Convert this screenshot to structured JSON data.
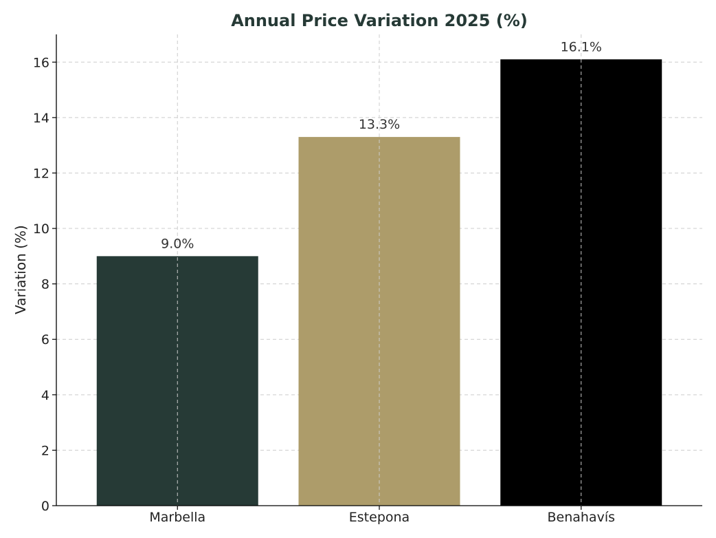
{
  "chart_data": {
    "type": "bar",
    "title": "Annual Price Variation 2025 (%)",
    "xlabel": "",
    "ylabel": "Variation (%)",
    "categories": [
      "Marbella",
      "Estepona",
      "Benahavís"
    ],
    "values": [
      9.0,
      13.3,
      16.1
    ],
    "data_labels": [
      "9.0%",
      "13.3%",
      "16.1%"
    ],
    "colors": [
      "#263a36",
      "#ad9c6a",
      "#000000"
    ],
    "ylim": [
      0,
      17
    ],
    "yticks": [
      0,
      2,
      4,
      6,
      8,
      10,
      12,
      14,
      16
    ],
    "grid": true
  }
}
